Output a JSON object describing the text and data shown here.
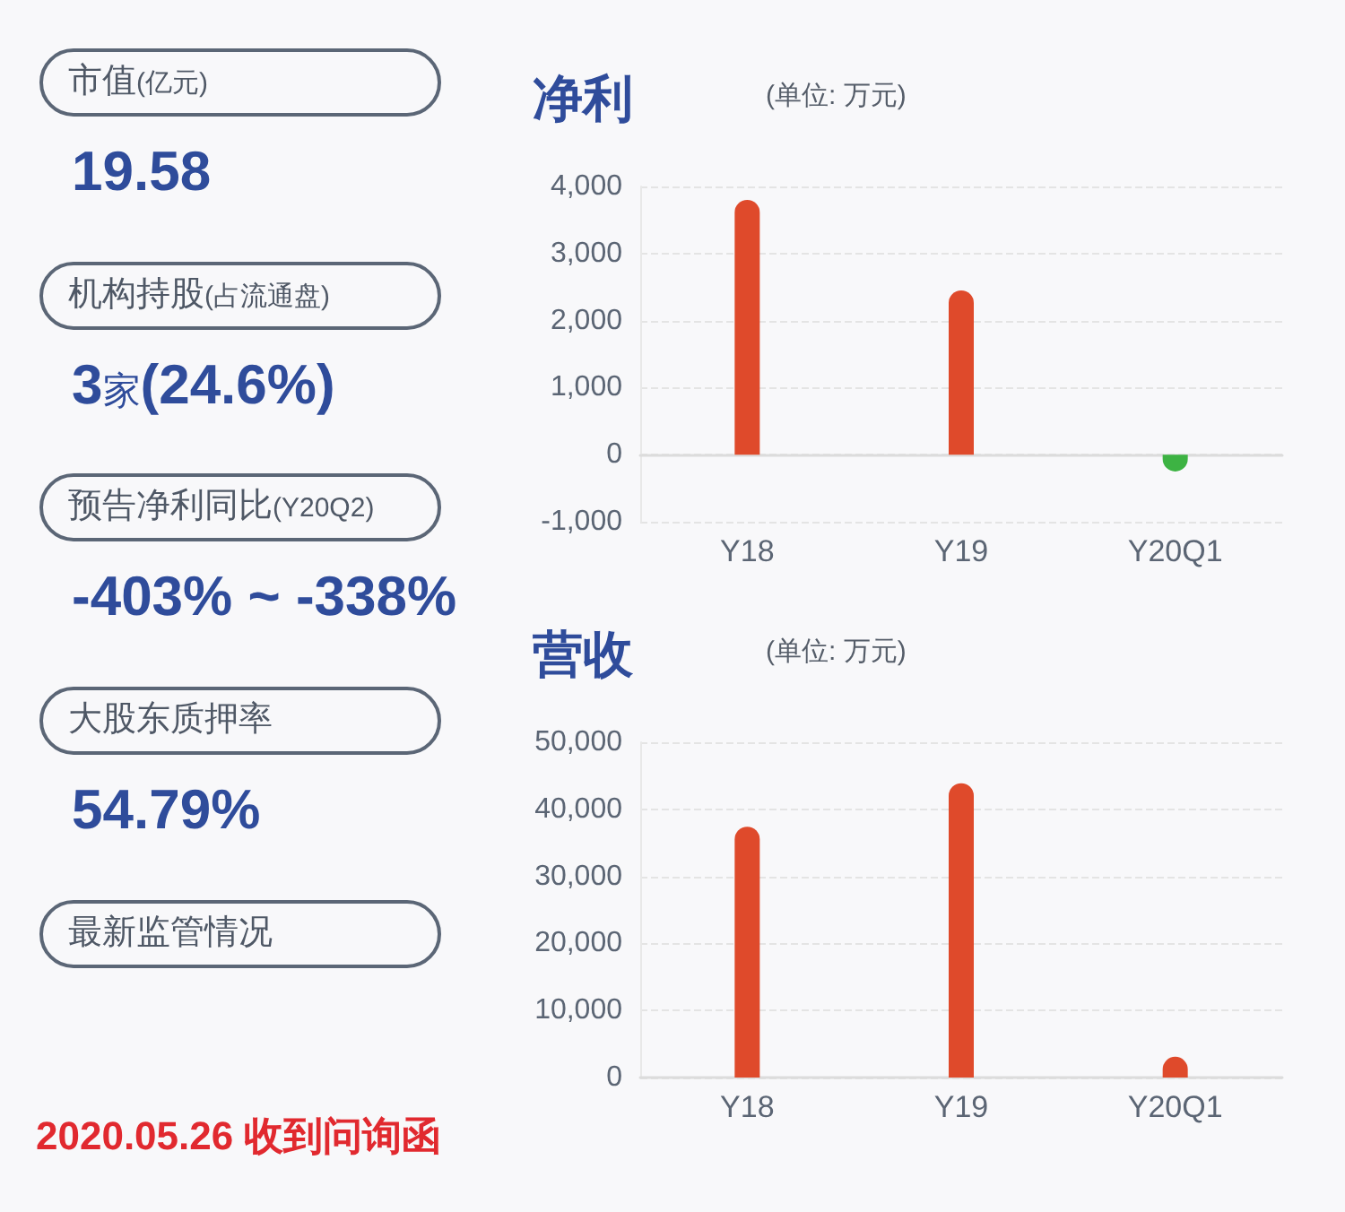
{
  "chart_data": [
    {
      "type": "other",
      "annotations": [
        "市值(亿元)",
        "19.58",
        "机构持股(占流通盘)",
        "3家(24.6%)",
        "预告净利同比(Y20Q2)",
        "-403% ~ -338%",
        "大股东质押率",
        "54.79%",
        "最新监管情况",
        "2020.05.26 收到问询函"
      ]
    },
    {
      "type": "bar",
      "title": "净利",
      "subtitle": "(单位: 万元)",
      "categories": [
        "Y18",
        "Y19",
        "Y20Q1"
      ],
      "values": [
        3800,
        2450,
        -250
      ],
      "colors": [
        "#df4a2b",
        "#df4a2b",
        "#3db343"
      ],
      "ylim": [
        -1000,
        4000
      ],
      "yticks": [
        {
          "value": -1000,
          "label": "-1,000"
        },
        0,
        {
          "value": 1000,
          "label": "1,000"
        },
        {
          "value": 2000,
          "label": "2,000"
        },
        {
          "value": 3000,
          "label": "3,000"
        },
        {
          "value": 4000,
          "label": "4,000"
        }
      ],
      "grid": "y"
    },
    {
      "type": "bar",
      "title": "营收",
      "subtitle": "(单位: 万元)",
      "categories": [
        "Y18",
        "Y19",
        "Y20Q1"
      ],
      "values": [
        37400,
        43900,
        3100
      ],
      "colors": [
        "#df4a2b",
        "#df4a2b",
        "#df4a2b"
      ],
      "ylim": [
        0,
        50000
      ],
      "yticks": [
        0,
        {
          "value": 10000,
          "label": "10,000"
        },
        {
          "value": 20000,
          "label": "20,000"
        },
        {
          "value": 30000,
          "label": "30,000"
        },
        {
          "value": 40000,
          "label": "40,000"
        },
        {
          "value": 50000,
          "label": "50,000"
        }
      ],
      "grid": "y"
    }
  ]
}
